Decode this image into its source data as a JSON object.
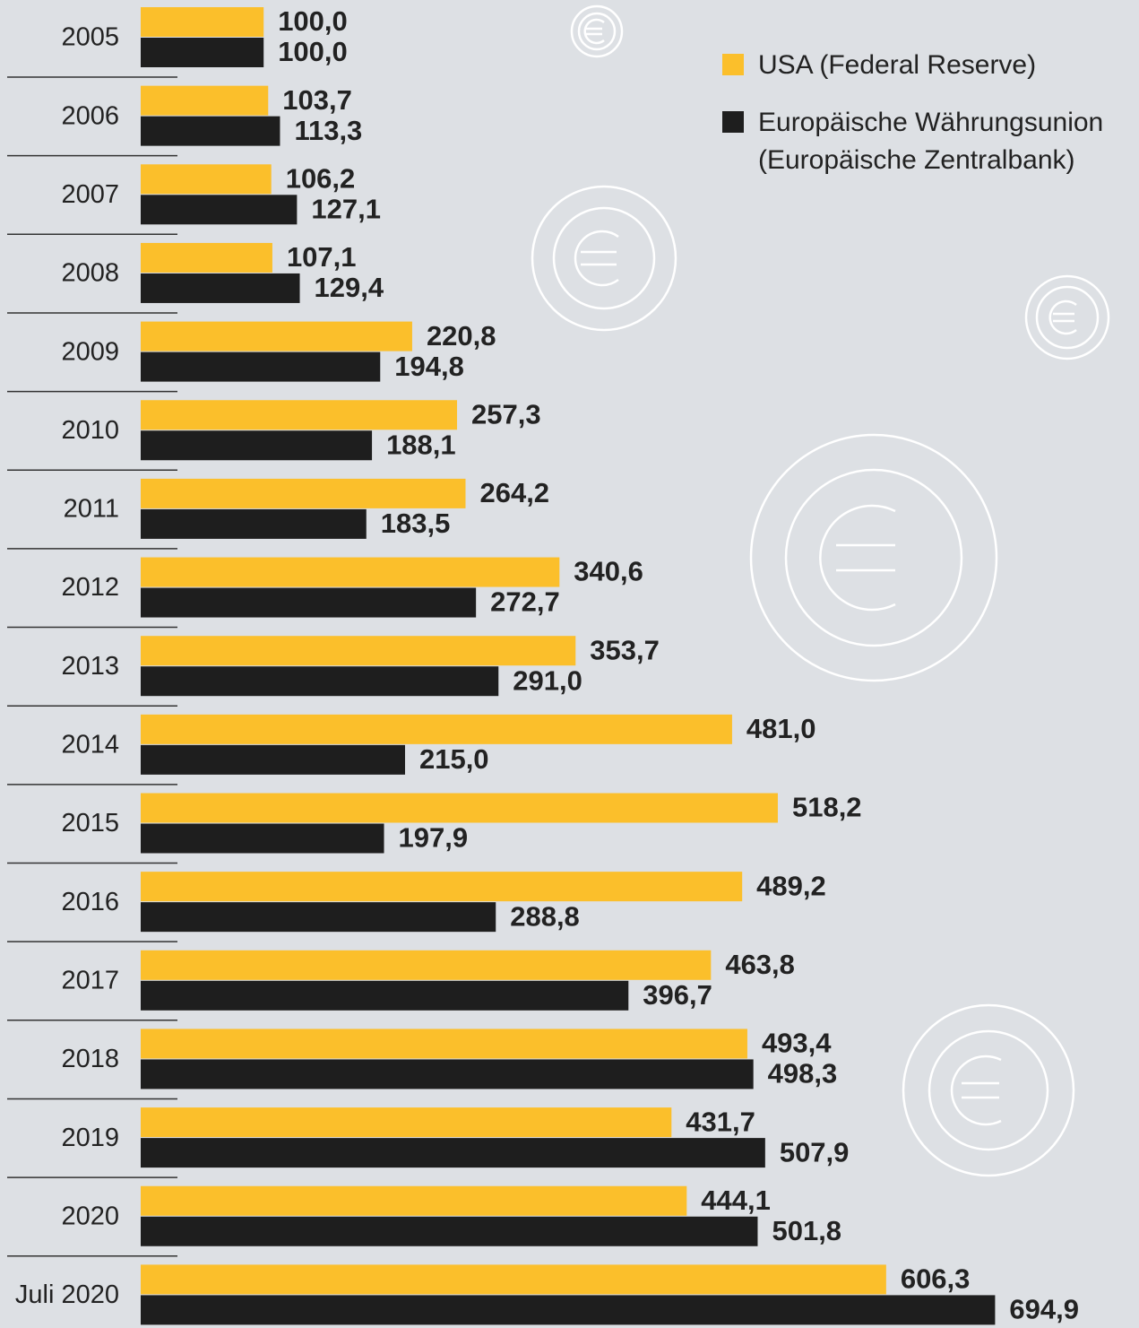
{
  "chart_data": {
    "type": "bar",
    "orientation": "horizontal",
    "categories": [
      "2005",
      "2006",
      "2007",
      "2008",
      "2009",
      "2010",
      "2011",
      "2012",
      "2013",
      "2014",
      "2015",
      "2016",
      "2017",
      "2018",
      "2019",
      "2020",
      "Juli 2020"
    ],
    "series": [
      {
        "name": "USA (Federal Reserve)",
        "color": "#fbbf2b",
        "values": [
          100.0,
          103.7,
          106.2,
          107.1,
          220.8,
          257.3,
          264.2,
          340.6,
          353.7,
          481.0,
          518.2,
          489.2,
          463.8,
          493.4,
          431.7,
          444.1,
          606.3
        ],
        "value_labels": [
          "100,0",
          "103,7",
          "106,2",
          "107,1",
          "220,8",
          "257,3",
          "264,2",
          "340,6",
          "353,7",
          "481,0",
          "518,2",
          "489,2",
          "463,8",
          "493,4",
          "431,7",
          "444,1",
          "606,3"
        ]
      },
      {
        "name": "Europäische Währungsunion (Europäische Zentralbank)",
        "color": "#1e1e1e",
        "values": [
          100.0,
          113.3,
          127.1,
          129.4,
          194.8,
          188.1,
          183.5,
          272.7,
          291.0,
          215.0,
          197.9,
          288.8,
          396.7,
          498.3,
          507.9,
          501.8,
          694.9
        ],
        "value_labels": [
          "100,0",
          "113,3",
          "127,1",
          "129,4",
          "194,8",
          "188,1",
          "183,5",
          "272,7",
          "291,0",
          "215,0",
          "197,9",
          "288,8",
          "396,7",
          "498,3",
          "507,9",
          "501,8",
          "694,9"
        ]
      }
    ],
    "legend": "top-right"
  }
}
